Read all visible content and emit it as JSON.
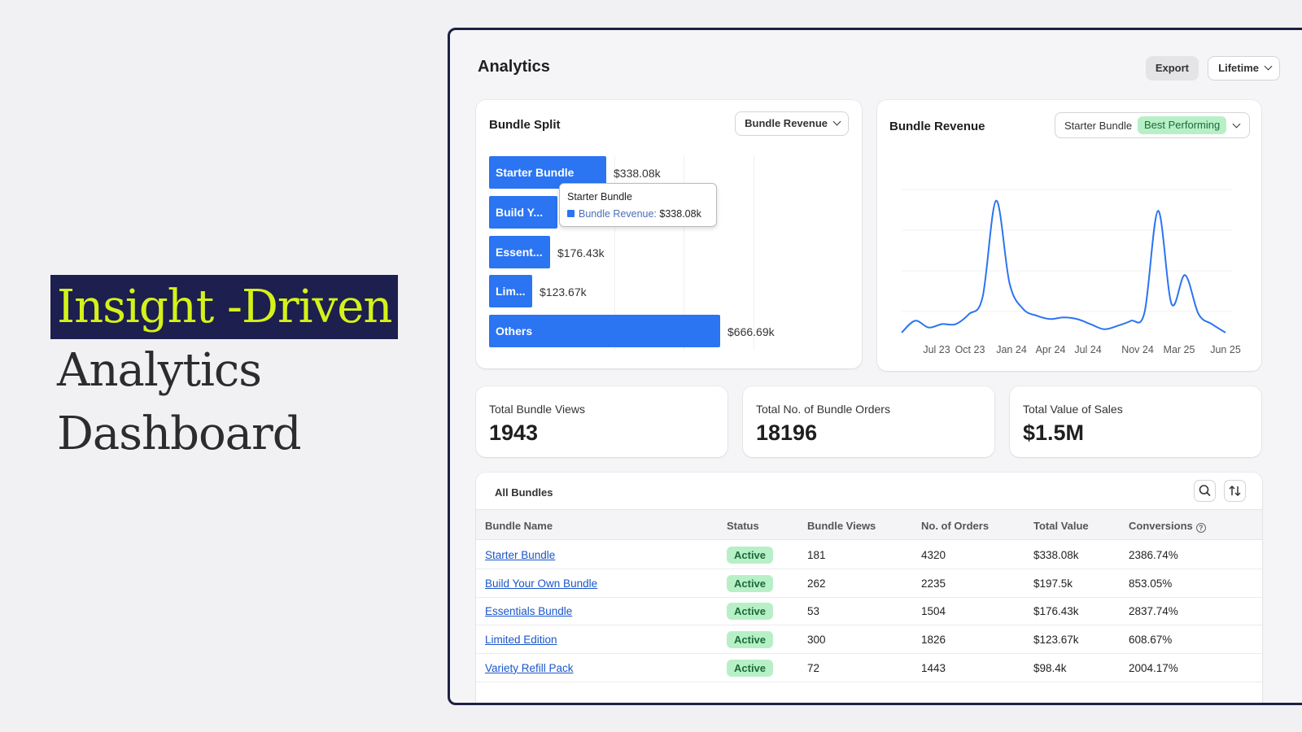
{
  "hero": {
    "line1": "Insight -Driven",
    "line2": "Analytics",
    "line3": "Dashboard"
  },
  "header": {
    "title": "Analytics",
    "export_label": "Export",
    "range_label": "Lifetime"
  },
  "bundle_split": {
    "title": "Bundle Split",
    "metric_select": "Bundle Revenue",
    "tooltip": {
      "title": "Starter Bundle",
      "key": "Bundle Revenue:",
      "value": "$338.08k"
    }
  },
  "bundle_revenue": {
    "title": "Bundle Revenue",
    "bundle_select": "Starter Bundle",
    "badge": "Best Performing"
  },
  "stats": [
    {
      "label": "Total Bundle Views",
      "value": "1943"
    },
    {
      "label": "Total No. of Bundle Orders",
      "value": "18196"
    },
    {
      "label": "Total Value of Sales",
      "value": "$1.5M"
    }
  ],
  "table": {
    "title": "All Bundles",
    "columns": [
      "Bundle Name",
      "Status",
      "Bundle Views",
      "No. of Orders",
      "Total Value",
      "Conversions"
    ],
    "rows": [
      {
        "name": "Starter Bundle",
        "status": "Active",
        "views": "181",
        "orders": "4320",
        "value": "$338.08k",
        "conversions": "2386.74%"
      },
      {
        "name": "Build Your Own Bundle",
        "status": "Active",
        "views": "262",
        "orders": "2235",
        "value": "$197.5k",
        "conversions": "853.05%"
      },
      {
        "name": "Essentials Bundle",
        "status": "Active",
        "views": "53",
        "orders": "1504",
        "value": "$176.43k",
        "conversions": "2837.74%"
      },
      {
        "name": "Limited Edition",
        "status": "Active",
        "views": "300",
        "orders": "1826",
        "value": "$123.67k",
        "conversions": "608.67%"
      },
      {
        "name": "Variety Refill Pack",
        "status": "Active",
        "views": "72",
        "orders": "1443",
        "value": "$98.4k",
        "conversions": "2004.17%"
      }
    ]
  },
  "icons": {
    "search": "search-icon",
    "sort": "sort-icon",
    "help": "help-circle-icon",
    "chevron": "chevron-down-icon"
  },
  "colors": {
    "accent": "#2b74f2",
    "hero_highlight_bg": "#1d1f4f",
    "hero_highlight_text": "#d4f21a",
    "status_active_bg": "#b7f0c7",
    "link": "#1a56c9"
  },
  "chart_data": [
    {
      "type": "bar",
      "orientation": "horizontal",
      "categories": [
        "Starter Bundle",
        "Build Y...",
        "Essent...",
        "Lim...",
        "Others"
      ],
      "values": [
        338.08,
        197.5,
        176.43,
        123.67,
        666.69
      ],
      "value_labels": [
        "$338.08k",
        "",
        "$176.43k",
        "$123.67k",
        "$666.69k"
      ],
      "unit": "$k",
      "xlim": [
        0,
        1000
      ],
      "grid": true
    },
    {
      "type": "line",
      "series": [
        {
          "values": [
            1,
            8,
            4,
            6,
            6,
            12,
            22,
            79,
            30,
            15,
            11,
            9,
            10,
            9,
            6,
            3,
            5,
            8,
            13,
            73,
            18,
            35,
            12,
            6,
            1
          ]
        }
      ],
      "x_tick_labels": [
        "Jul 23",
        "Oct 23",
        "Jan 24",
        "Apr 24",
        "Jul 24",
        "Nov 24",
        "Mar 25",
        "Jun 25"
      ],
      "ylim": [
        0,
        100
      ],
      "grid": true
    }
  ]
}
